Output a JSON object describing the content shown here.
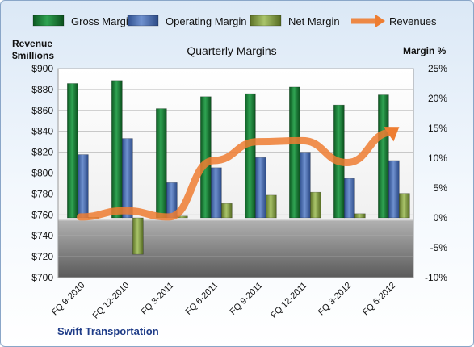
{
  "chart_data": {
    "type": "bar",
    "title": "Quarterly Margins",
    "footer": "Swift Transportation",
    "categories": [
      "FQ 9-2010",
      "FQ 12-2010",
      "FQ 3-2011",
      "FQ 6-2011",
      "FQ 9-2011",
      "FQ 12-2011",
      "FQ 3-2012",
      "FQ 6-2012"
    ],
    "left_axis": {
      "label_line1": "Revenue",
      "label_line2": "$millions",
      "min": 700,
      "max": 900,
      "step": 20,
      "tick_labels": [
        "$700",
        "$720",
        "$740",
        "$760",
        "$780",
        "$800",
        "$820",
        "$840",
        "$860",
        "$880",
        "$900"
      ]
    },
    "right_axis": {
      "label": "Margin %",
      "min": -10,
      "max": 25,
      "step": 5,
      "tick_labels": [
        "-10%",
        "-5%",
        "0%",
        "5%",
        "10%",
        "15%",
        "20%",
        "25%"
      ]
    },
    "series": [
      {
        "name": "Gross Margin",
        "kind": "bar",
        "axis": "right",
        "color": "#1e8a3c",
        "values": [
          22.5,
          23.0,
          18.3,
          20.3,
          20.8,
          21.9,
          18.9,
          20.6
        ]
      },
      {
        "name": "Operating Margin",
        "kind": "bar",
        "axis": "right",
        "color": "#4a6fb5",
        "values": [
          10.6,
          13.3,
          5.9,
          8.4,
          10.1,
          11.0,
          6.6,
          9.6
        ]
      },
      {
        "name": "Net Margin",
        "kind": "bar",
        "axis": "right",
        "color": "#8fa84a",
        "values": [
          0.1,
          -6.1,
          0.3,
          2.4,
          3.8,
          4.3,
          0.7,
          4.1
        ]
      },
      {
        "name": "Revenues",
        "kind": "line",
        "axis": "left",
        "color": "#ee7d31",
        "values": [
          758,
          764,
          758,
          812,
          830,
          831,
          810,
          839
        ]
      }
    ],
    "legend_position": "top"
  }
}
